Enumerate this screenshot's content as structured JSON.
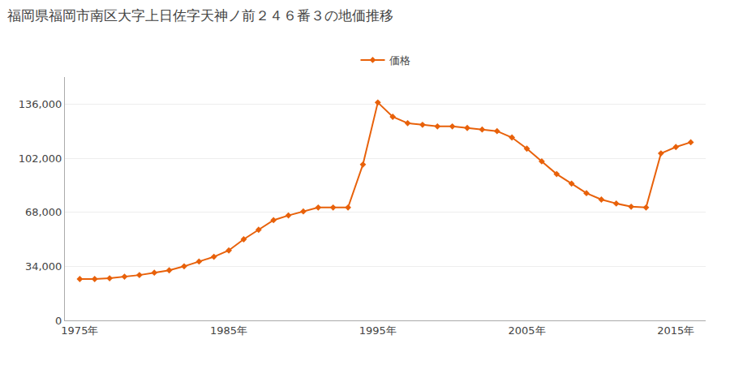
{
  "chart_data": {
    "type": "line",
    "title": "福岡県福岡市南区大字上日佐字天神ノ前２４６番３の地価推移",
    "x": [
      1975,
      1976,
      1977,
      1978,
      1979,
      1980,
      1981,
      1982,
      1983,
      1984,
      1985,
      1986,
      1987,
      1988,
      1989,
      1990,
      1991,
      1992,
      1993,
      1994,
      1995,
      1996,
      1997,
      1998,
      1999,
      2000,
      2001,
      2002,
      2003,
      2004,
      2005,
      2006,
      2007,
      2008,
      2009,
      2010,
      2011,
      2012,
      2013,
      2014,
      2015,
      2016
    ],
    "series": [
      {
        "name": "価格",
        "color": "#E8610A",
        "marker": "diamond",
        "line_style": "solid",
        "values": [
          26000,
          26000,
          26500,
          27500,
          28500,
          30000,
          31500,
          34000,
          37000,
          40000,
          44000,
          51000,
          57000,
          63000,
          66000,
          68500,
          71000,
          71000,
          71000,
          98000,
          137000,
          128000,
          124000,
          123000,
          122000,
          122000,
          121000,
          120000,
          119000,
          115000,
          108000,
          100000,
          92000,
          86000,
          80000,
          76000,
          73500,
          71500,
          71000,
          105000,
          109000,
          112000
        ]
      }
    ],
    "xlim": [
      1974,
      2017
    ],
    "xticks": [
      {
        "value": 1975,
        "label": "1975年"
      },
      {
        "value": 1985,
        "label": "1985年"
      },
      {
        "value": 1995,
        "label": "1995年"
      },
      {
        "value": 2005,
        "label": "2005年"
      },
      {
        "value": 2015,
        "label": "2015年"
      }
    ],
    "ylim": [
      0,
      153000
    ],
    "yticks": [
      0,
      {
        "value": 34000,
        "label": "34,000"
      },
      {
        "value": 68000,
        "label": "68,000"
      },
      {
        "value": 102000,
        "label": "102,000"
      },
      {
        "value": 136000,
        "label": "136,000"
      }
    ],
    "grid": "y",
    "legend": "top"
  }
}
